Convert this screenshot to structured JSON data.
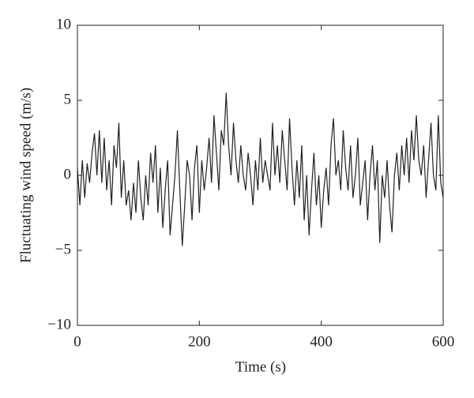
{
  "chart_data": {
    "type": "line",
    "xlabel": "Time (s)",
    "ylabel": "Fluctuating wind speed (m/s)",
    "x": [
      0,
      4,
      8,
      12,
      16,
      20,
      24,
      28,
      32,
      36,
      40,
      44,
      48,
      52,
      56,
      60,
      64,
      68,
      72,
      76,
      80,
      84,
      88,
      92,
      96,
      100,
      104,
      108,
      112,
      116,
      120,
      124,
      128,
      132,
      136,
      140,
      144,
      148,
      152,
      156,
      160,
      164,
      168,
      172,
      176,
      180,
      184,
      188,
      192,
      196,
      200,
      204,
      208,
      212,
      216,
      220,
      224,
      228,
      232,
      236,
      240,
      244,
      248,
      252,
      256,
      260,
      264,
      268,
      272,
      276,
      280,
      284,
      288,
      292,
      296,
      300,
      304,
      308,
      312,
      316,
      320,
      324,
      328,
      332,
      336,
      340,
      344,
      348,
      352,
      356,
      360,
      364,
      368,
      372,
      376,
      380,
      384,
      388,
      392,
      396,
      400,
      404,
      408,
      412,
      416,
      420,
      424,
      428,
      432,
      436,
      440,
      444,
      448,
      452,
      456,
      460,
      464,
      468,
      472,
      476,
      480,
      484,
      488,
      492,
      496,
      500,
      504,
      508,
      512,
      516,
      520,
      524,
      528,
      532,
      536,
      540,
      544,
      548,
      552,
      556,
      560,
      564,
      568,
      572,
      576,
      580,
      584,
      588,
      592,
      596,
      600
    ],
    "series": [
      {
        "color": "#222222",
        "values": [
          0.5,
          -2,
          1,
          -1.5,
          0.8,
          -0.5,
          1.5,
          2.8,
          0,
          3,
          -0.5,
          2.5,
          -1,
          1,
          -2,
          2,
          0.5,
          3.5,
          -1.5,
          1,
          -2,
          -1,
          -3,
          -0.5,
          -2.5,
          1,
          -1.5,
          -3,
          0,
          -2,
          1.5,
          -0.5,
          2,
          -2.5,
          0.5,
          -3.5,
          -1,
          1,
          -4,
          -2,
          0,
          3,
          -1,
          -4.7,
          -2,
          1,
          0,
          -3,
          0.5,
          2,
          -2.5,
          1,
          -1,
          0.5,
          2.5,
          -0.5,
          4,
          1.5,
          -1,
          3,
          2,
          5.5,
          2,
          0,
          3.5,
          1,
          -0.5,
          2,
          0,
          -1,
          1.5,
          0,
          -2,
          1,
          -1,
          2.5,
          -0.5,
          1,
          0,
          -1,
          3.5,
          0,
          2,
          -0.5,
          3,
          1,
          -1,
          3.8,
          0.5,
          -2,
          1,
          -1.5,
          2,
          -3,
          0,
          -4,
          -1,
          1.5,
          -2,
          0,
          -3.5,
          -1,
          0.5,
          -2,
          2,
          3.8,
          0,
          1,
          -1,
          3,
          0.5,
          -1,
          2,
          -1.5,
          0,
          2.5,
          -2,
          -0.5,
          1,
          -3,
          0,
          2,
          -1,
          1,
          -4.5,
          0,
          -1.5,
          1,
          -2,
          -3.8,
          0,
          1.5,
          -1,
          2,
          0,
          2.5,
          -0.5,
          3,
          1,
          4,
          1,
          0,
          2,
          -1.5,
          1,
          3.5,
          0,
          -1,
          4,
          -0.5,
          -1.5
        ]
      }
    ],
    "xlim": [
      0,
      600
    ],
    "xticks": [
      0,
      200,
      400,
      600
    ],
    "ylim": [
      -10,
      10
    ],
    "yticks": [
      {
        "value": -10,
        "label": "−10"
      },
      {
        "value": -5,
        "label": "−5"
      },
      0,
      5,
      10
    ]
  }
}
